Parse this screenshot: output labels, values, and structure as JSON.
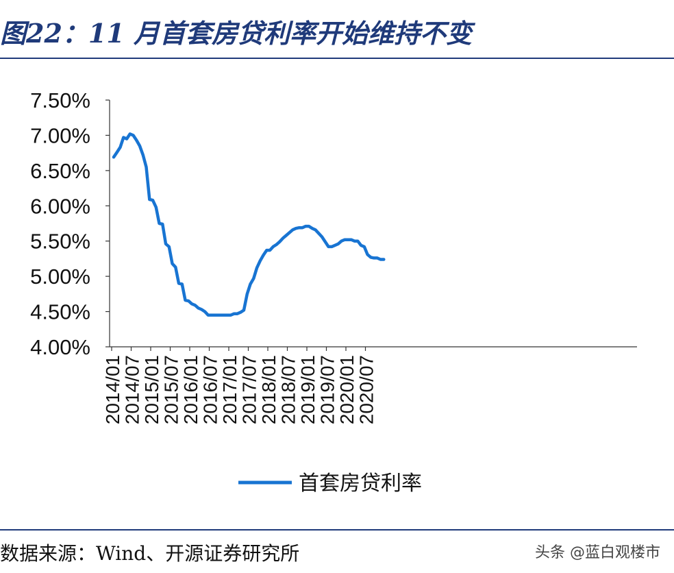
{
  "title": "图22：11 月首套房贷利率开始维持不变",
  "source": "数据来源：Wind、开源证券研究所",
  "watermark": "头条 @蓝白观楼市",
  "colors": {
    "line": "#1874d2",
    "title": "#1f3a7a",
    "axis": "#333333"
  },
  "chart_data": {
    "type": "line",
    "title": "",
    "xlabel": "",
    "ylabel": "",
    "ylim": [
      4.0,
      7.5
    ],
    "yticks": [
      "4.00%",
      "4.50%",
      "5.00%",
      "5.50%",
      "6.00%",
      "6.50%",
      "7.00%",
      "7.50%"
    ],
    "xticks": [
      "2014/01",
      "2014/07",
      "2015/01",
      "2015/07",
      "2016/01",
      "2016/07",
      "2017/01",
      "2017/07",
      "2018/01",
      "2018/07",
      "2019/01",
      "2019/07",
      "2020/01",
      "2020/07"
    ],
    "grid": false,
    "legend": "bottom",
    "series": [
      {
        "name": "首套房贷利率",
        "x": [
          "2014/01",
          "2014/02",
          "2014/03",
          "2014/04",
          "2014/05",
          "2014/06",
          "2014/07",
          "2014/08",
          "2014/09",
          "2014/10",
          "2014/11",
          "2014/12",
          "2015/01",
          "2015/02",
          "2015/03",
          "2015/04",
          "2015/05",
          "2015/06",
          "2015/07",
          "2015/08",
          "2015/09",
          "2015/10",
          "2015/11",
          "2015/12",
          "2016/01",
          "2016/02",
          "2016/03",
          "2016/04",
          "2016/05",
          "2016/06",
          "2016/07",
          "2016/08",
          "2016/09",
          "2016/10",
          "2016/11",
          "2016/12",
          "2017/01",
          "2017/02",
          "2017/03",
          "2017/04",
          "2017/05",
          "2017/06",
          "2017/07",
          "2017/08",
          "2017/09",
          "2017/10",
          "2017/11",
          "2017/12",
          "2018/01",
          "2018/02",
          "2018/03",
          "2018/04",
          "2018/05",
          "2018/06",
          "2018/07",
          "2018/08",
          "2018/09",
          "2018/10",
          "2018/11",
          "2018/12",
          "2019/01",
          "2019/02",
          "2019/03",
          "2019/04",
          "2019/05",
          "2019/06",
          "2019/07",
          "2019/08",
          "2019/09",
          "2019/10",
          "2019/11",
          "2019/12",
          "2020/01",
          "2020/02",
          "2020/03",
          "2020/04",
          "2020/05",
          "2020/06",
          "2020/07",
          "2020/08",
          "2020/09",
          "2020/10",
          "2020/11",
          "2020/12"
        ],
        "values": [
          6.69,
          6.76,
          6.83,
          6.97,
          6.95,
          7.02,
          7.0,
          6.93,
          6.85,
          6.72,
          6.55,
          6.09,
          6.08,
          5.98,
          5.75,
          5.74,
          5.46,
          5.42,
          5.18,
          5.13,
          4.9,
          4.89,
          4.66,
          4.65,
          4.61,
          4.59,
          4.55,
          4.53,
          4.5,
          4.45,
          4.45,
          4.45,
          4.45,
          4.45,
          4.45,
          4.45,
          4.45,
          4.47,
          4.47,
          4.49,
          4.52,
          4.75,
          4.89,
          4.97,
          5.12,
          5.22,
          5.3,
          5.37,
          5.37,
          5.42,
          5.45,
          5.49,
          5.54,
          5.58,
          5.62,
          5.66,
          5.68,
          5.69,
          5.69,
          5.71,
          5.71,
          5.68,
          5.66,
          5.61,
          5.56,
          5.49,
          5.42,
          5.42,
          5.44,
          5.46,
          5.5,
          5.52,
          5.52,
          5.52,
          5.5,
          5.5,
          5.44,
          5.42,
          5.31,
          5.27,
          5.26,
          5.26,
          5.24,
          5.24
        ]
      }
    ]
  }
}
